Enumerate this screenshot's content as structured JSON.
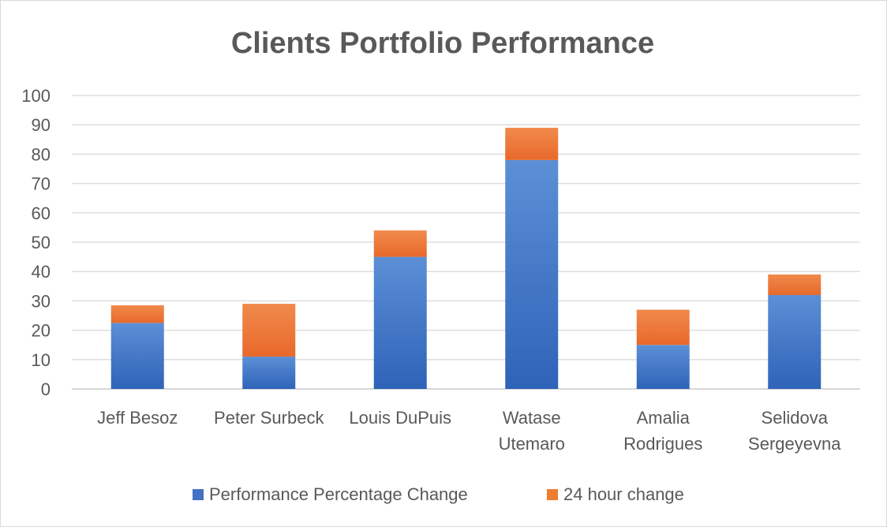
{
  "chart_data": {
    "type": "bar",
    "stacked": true,
    "title": "Clients Portfolio Performance",
    "xlabel": "",
    "ylabel": "",
    "ylim": [
      0,
      100
    ],
    "yticks": [
      0,
      10,
      20,
      30,
      40,
      50,
      60,
      70,
      80,
      90,
      100
    ],
    "grid": true,
    "legend_position": "bottom",
    "categories": [
      [
        "Jeff Besoz"
      ],
      [
        "Peter Surbeck"
      ],
      [
        "Louis DuPuis"
      ],
      [
        "Watase",
        "Utemaro"
      ],
      [
        "Amalia",
        "Rodrigues"
      ],
      [
        "Selidova",
        "Sergeyevna"
      ]
    ],
    "series": [
      {
        "name": "Performance Percentage Change",
        "color": "#4472c4",
        "values": [
          22.5,
          11,
          45,
          78,
          15,
          32
        ]
      },
      {
        "name": "24 hour change",
        "color": "#ed7d31",
        "values": [
          6,
          18,
          9,
          11,
          12,
          7
        ]
      }
    ]
  }
}
